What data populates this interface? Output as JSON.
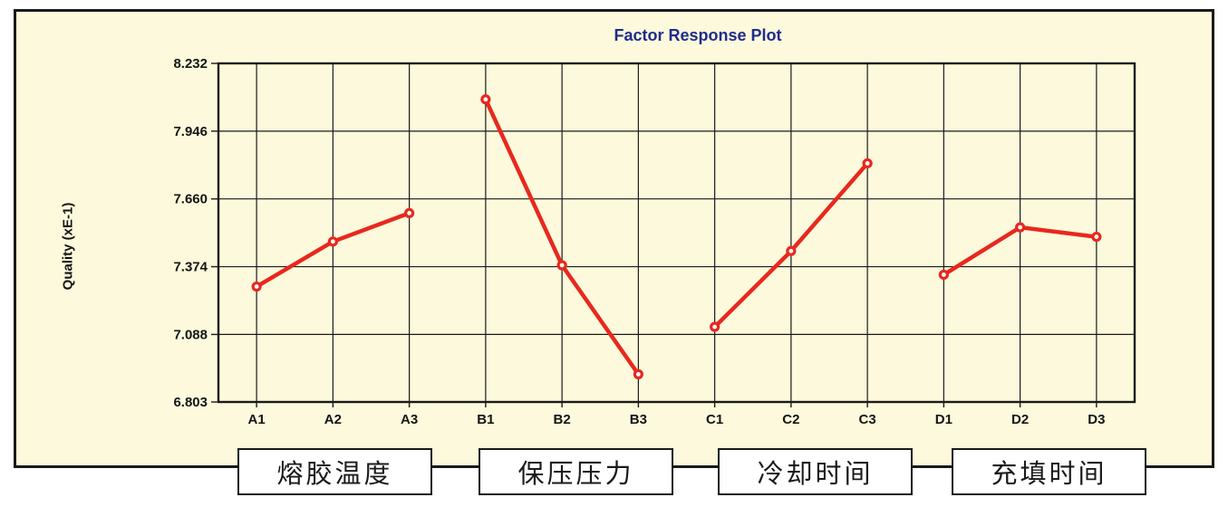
{
  "panel": {
    "background_color": "#FCF9DC",
    "border_color": "#1A1A1A"
  },
  "chart_data": {
    "type": "line",
    "title": "Factor Response Plot",
    "title_color": "#1F2C8C",
    "ylabel": "Quality (xE-1)",
    "categories": [
      "A1",
      "A2",
      "A3",
      "B1",
      "B2",
      "B3",
      "C1",
      "C2",
      "C3",
      "D1",
      "D2",
      "D3"
    ],
    "series": [
      {
        "name": "熔胶温度",
        "categories": [
          "A1",
          "A2",
          "A3"
        ],
        "values": [
          7.29,
          7.48,
          7.6
        ]
      },
      {
        "name": "保压压力",
        "categories": [
          "B1",
          "B2",
          "B3"
        ],
        "values": [
          8.08,
          7.38,
          6.92
        ]
      },
      {
        "name": "冷却时间",
        "categories": [
          "C1",
          "C2",
          "C3"
        ],
        "values": [
          7.12,
          7.44,
          7.81
        ]
      },
      {
        "name": "充填时间",
        "categories": [
          "D1",
          "D2",
          "D3"
        ],
        "values": [
          7.34,
          7.54,
          7.5
        ]
      }
    ],
    "yticks": [
      "8.232",
      "7.946",
      "7.660",
      "7.374",
      "7.088",
      "6.803"
    ],
    "ylim": [
      6.803,
      8.232
    ],
    "grid": true,
    "legend_position": "none",
    "line_color": "#E8281E",
    "marker": "open-circle",
    "marker_fill": "#FFFFFF",
    "axis_color": "#1A1A1A",
    "tick_label_color": "#141414"
  }
}
